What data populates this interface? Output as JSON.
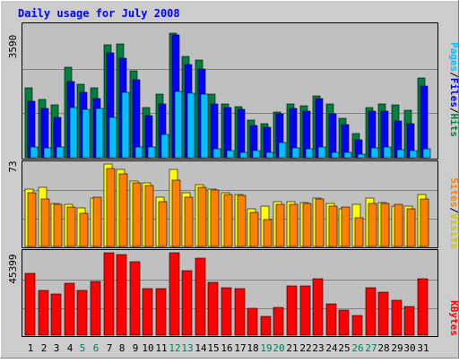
{
  "title": "Daily usage for July 2008",
  "colors": {
    "hits": "#008040",
    "files": "#0000ff",
    "pages": "#00c0ff",
    "visits": "#ffff00",
    "sites": "#ff8000",
    "kbytes": "#ff0000",
    "title": "#0000ff",
    "panel": "#c0c0c0",
    "outer": "#cccccc",
    "weekend_label": "#00805c"
  },
  "chart_data": {
    "type": "bar",
    "title": "Daily usage for July 2008",
    "grid": true,
    "categories": [
      "1",
      "2",
      "3",
      "4",
      "5",
      "6",
      "7",
      "8",
      "9",
      "10",
      "11",
      "12",
      "13",
      "14",
      "15",
      "16",
      "17",
      "18",
      "19",
      "20",
      "21",
      "22",
      "23",
      "24",
      "25",
      "26",
      "27",
      "28",
      "29",
      "30",
      "31"
    ],
    "weekend_days": [
      "5",
      "6",
      "12",
      "13",
      "19",
      "20",
      "26",
      "27"
    ],
    "panels": [
      {
        "name": "hits-files-pages",
        "y_max": 3590,
        "y_max_label": "3590",
        "legend": [
          "Pages",
          "Files",
          "Hits"
        ],
        "series": [
          {
            "name": "Hits",
            "color": "#008040",
            "values": [
              1880,
              1570,
              1440,
              2460,
              2000,
              1880,
              3050,
              3070,
              2350,
              1360,
              1720,
              3380,
              2740,
              2640,
              1730,
              1450,
              1390,
              1030,
              930,
              1240,
              1450,
              1400,
              1680,
              1460,
              1070,
              660,
              1370,
              1460,
              1420,
              1290,
              2150
            ]
          },
          {
            "name": "Files",
            "color": "#0000ff",
            "values": [
              1530,
              1330,
              1080,
              2060,
              1770,
              1600,
              2830,
              2700,
              2100,
              1140,
              1450,
              3320,
              2520,
              2400,
              1450,
              1370,
              1300,
              870,
              820,
              1200,
              1330,
              1250,
              1600,
              1200,
              890,
              480,
              1270,
              1270,
              1000,
              930,
              1930
            ]
          },
          {
            "name": "Pages",
            "color": "#00c0ff",
            "values": [
              300,
              260,
              280,
              1350,
              1300,
              1340,
              1080,
              1760,
              300,
              280,
              620,
              1790,
              1750,
              1730,
              250,
              190,
              150,
              190,
              150,
              420,
              260,
              250,
              300,
              140,
              150,
              100,
              270,
              300,
              220,
              190,
              250
            ]
          }
        ]
      },
      {
        "name": "visits-sites",
        "y_max": 73,
        "y_max_label": "73",
        "legend": [
          "Sites",
          "Visits"
        ],
        "series": [
          {
            "name": "Visits",
            "color": "#ffff00",
            "values": [
              51,
              52,
              38,
              37,
              34,
              43,
              73,
              68,
              58,
              56,
              44,
              68,
              48,
              55,
              51,
              48,
              46,
              33,
              36,
              40,
              40,
              39,
              43,
              38,
              33,
              37,
              43,
              39,
              36,
              36,
              46
            ]
          },
          {
            "name": "Sites",
            "color": "#ff8000",
            "values": [
              48,
              42,
              37,
              35,
              29,
              44,
              69,
              64,
              56,
              54,
              40,
              59,
              44,
              52,
              50,
              46,
              45,
              30,
              24,
              37,
              37,
              38,
              42,
              36,
              35,
              25,
              38,
              38,
              37,
              33,
              42
            ]
          }
        ]
      },
      {
        "name": "kbytes",
        "y_max": 45399,
        "y_max_label": "45399",
        "legend": [
          "KBytes"
        ],
        "series": [
          {
            "name": "KBytes",
            "color": "#ff0000",
            "values": [
              34000,
              24700,
              22500,
              28500,
              24700,
              29400,
              45400,
              44200,
              40400,
              25900,
              25800,
              45400,
              35700,
              42500,
              29000,
              26000,
              25800,
              14900,
              10400,
              15500,
              26900,
              26900,
              31300,
              17200,
              13600,
              10700,
              26000,
              23500,
              19300,
              15800,
              31300
            ]
          }
        ]
      }
    ]
  }
}
